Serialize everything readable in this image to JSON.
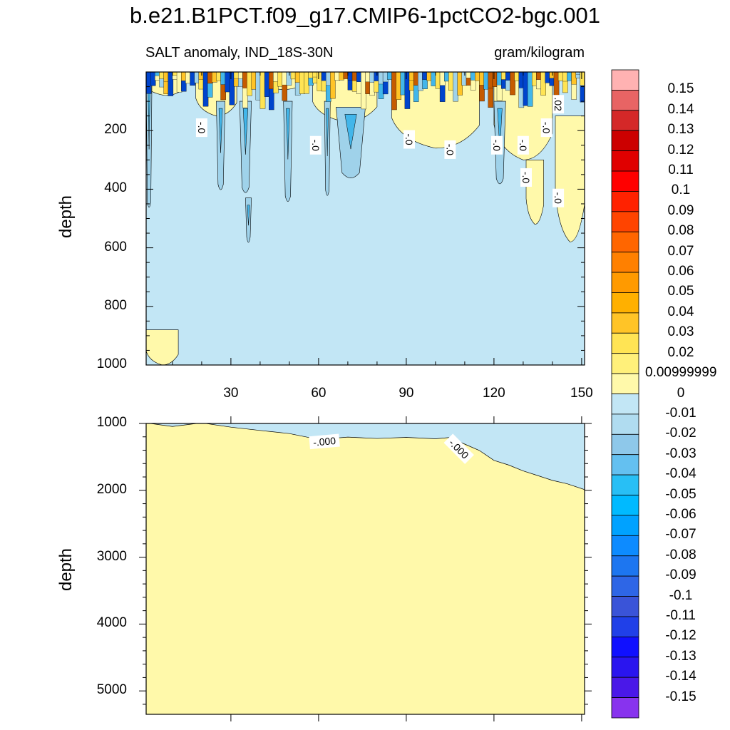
{
  "title": "b.e21.B1PCT.f09_g17.CMIP6-1pctCO2-bgc.001",
  "subtitle_left": "SALT anomaly, IND_18S-30N",
  "subtitle_right": "gram/kilogram",
  "colors": {
    "positive_light": "#fff9aa",
    "positive_mid": "#ffe454",
    "positive_strong": "#ffc427",
    "positive_dark": "#c55b00",
    "negative_light": "#c2e6f5",
    "negative_mid": "#9fd2ea",
    "negative_strong": "#42b6ea",
    "negative_dark": "#0044cc",
    "line": "#000000"
  },
  "chart_data": [
    {
      "type": "heatmap",
      "panel": "upper",
      "title": "SALT anomaly, IND_18S-30N",
      "units": "gram/kilogram",
      "ylabel": "depth",
      "xlabel": "",
      "xlim": [
        1,
        151
      ],
      "ylim": [
        1000,
        0
      ],
      "x_ticks": [
        30,
        60,
        90,
        120,
        150
      ],
      "x_tick_labels": [
        "30",
        "60",
        "90",
        "120",
        "150"
      ],
      "y_ticks": [
        200,
        400,
        600,
        800,
        1000
      ],
      "y_tick_labels": [
        "200",
        "400",
        "600",
        "800",
        "1000"
      ],
      "contour_labels": [
        {
          "text": "-.0",
          "x": 20,
          "depth": 190
        },
        {
          "text": "-.0",
          "x": 59,
          "depth": 250
        },
        {
          "text": "-.0",
          "x": 91,
          "depth": 230
        },
        {
          "text": "-.0",
          "x": 105,
          "depth": 265
        },
        {
          "text": "-.0",
          "x": 121,
          "depth": 250
        },
        {
          "text": "-.0",
          "x": 130,
          "depth": 250
        },
        {
          "text": "-.0",
          "x": 138,
          "depth": 190
        },
        {
          "text": "-.0",
          "x": 131,
          "depth": 360
        },
        {
          "text": "-.0",
          "x": 142,
          "depth": 430
        },
        {
          "text": ".02",
          "x": 142,
          "depth": 110
        }
      ],
      "positive_regions": [
        {
          "x": [
            1,
            14
          ],
          "depth": [
            0,
            80
          ]
        },
        {
          "x": [
            18,
            32
          ],
          "depth": [
            0,
            150
          ]
        },
        {
          "x": [
            40,
            55
          ],
          "depth": [
            0,
            60
          ]
        },
        {
          "x": [
            58,
            80
          ],
          "depth": [
            0,
            170
          ]
        },
        {
          "x": [
            85,
            115
          ],
          "depth": [
            0,
            260
          ]
        },
        {
          "x": [
            120,
            140
          ],
          "depth": [
            0,
            300
          ]
        },
        {
          "x": [
            131,
            137
          ],
          "depth": [
            300,
            520
          ]
        },
        {
          "x": [
            141,
            151
          ],
          "depth": [
            150,
            580
          ]
        },
        {
          "x": [
            1,
            12
          ],
          "depth": [
            880,
            1000
          ]
        }
      ],
      "negative_columns": [
        {
          "x": [
            1,
            3
          ],
          "depth": [
            0,
            480
          ]
        },
        {
          "x": [
            25,
            28
          ],
          "depth": [
            100,
            420
          ]
        },
        {
          "x": [
            33,
            37
          ],
          "depth": [
            100,
            430
          ]
        },
        {
          "x": [
            35,
            37
          ],
          "depth": [
            430,
            600
          ]
        },
        {
          "x": [
            48,
            51
          ],
          "depth": [
            100,
            460
          ]
        },
        {
          "x": [
            62,
            64
          ],
          "depth": [
            100,
            440
          ]
        },
        {
          "x": [
            66,
            76
          ],
          "depth": [
            120,
            380
          ]
        },
        {
          "x": [
            120,
            124
          ],
          "depth": [
            100,
            400
          ]
        }
      ]
    },
    {
      "type": "heatmap",
      "panel": "lower",
      "title": "",
      "ylabel": "depth",
      "xlim": [
        1,
        151
      ],
      "ylim": [
        5350,
        1000
      ],
      "y_ticks": [
        1000,
        2000,
        3000,
        4000,
        5000
      ],
      "y_tick_labels": [
        "1000",
        "2000",
        "3000",
        "4000",
        "5000"
      ],
      "x_ticks": [
        30,
        60,
        90,
        120,
        150
      ],
      "boundary": {
        "x": [
          1,
          10,
          20,
          30,
          40,
          50,
          60,
          70,
          80,
          90,
          100,
          105,
          110,
          115,
          120,
          125,
          130,
          135,
          140,
          145,
          151
        ],
        "depth": [
          1000,
          1040,
          1010,
          1050,
          1110,
          1160,
          1220,
          1200,
          1240,
          1200,
          1220,
          1230,
          1320,
          1420,
          1560,
          1640,
          1720,
          1780,
          1850,
          1900,
          1970
        ]
      },
      "contour_labels": [
        {
          "text": "-.000",
          "x": 62,
          "depth": 1270
        },
        {
          "text": "-.000",
          "x": 108,
          "depth": 1380
        }
      ]
    }
  ],
  "colorbar": {
    "labels": [
      "0.15",
      "0.14",
      "0.13",
      "0.12",
      "0.11",
      "0.1",
      "0.09",
      "0.08",
      "0.07",
      "0.06",
      "0.05",
      "0.04",
      "0.03",
      "0.02",
      "0.00999999",
      "0",
      "-0.01",
      "-0.02",
      "-0.03",
      "-0.04",
      "-0.05",
      "-0.06",
      "-0.07",
      "-0.08",
      "-0.09",
      "-0.1",
      "-0.11",
      "-0.12",
      "-0.13",
      "-0.14",
      "-0.15"
    ],
    "colors": [
      "#ffb2b2",
      "#e86464",
      "#d42828",
      "#cc0000",
      "#e00000",
      "#ff0000",
      "#ff2200",
      "#ff4400",
      "#ff6600",
      "#ff8000",
      "#ff9a00",
      "#ffb000",
      "#ffc427",
      "#ffe454",
      "#fff07a",
      "#fff9aa",
      "#c2e6f5",
      "#b0dcf0",
      "#8ec8ea",
      "#64c0f0",
      "#28bff5",
      "#00baff",
      "#00a2ff",
      "#0d8bff",
      "#1d76f0",
      "#2e66e6",
      "#3a54d8",
      "#2040e8",
      "#1010ff",
      "#2a15ef",
      "#4a18e8",
      "#8833ee"
    ]
  }
}
